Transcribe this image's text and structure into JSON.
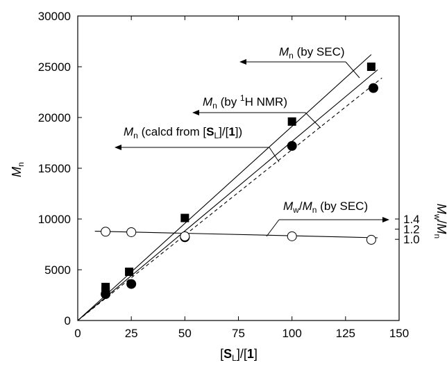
{
  "chart_data": {
    "type": "scatter",
    "xlabel": "[SL]/[1]",
    "ylabel": "Mn",
    "right_ylabel": "Mw/Mn",
    "xlim": [
      0,
      150
    ],
    "ylim": [
      0,
      30000
    ],
    "x_ticks": [
      0,
      25,
      50,
      75,
      100,
      125,
      150
    ],
    "y_ticks": [
      0,
      5000,
      10000,
      15000,
      20000,
      25000,
      30000
    ],
    "right_axis": {
      "ticks": [
        1.0,
        1.2,
        1.4
      ],
      "tick_labels": [
        "1.0",
        "1.2",
        "1.4"
      ],
      "value_1_0_at_left": 8000,
      "left_units_per_0_1": 500
    },
    "grid": false,
    "series": [
      {
        "name": "Mn (by SEC)",
        "marker": "filled-square",
        "x": [
          13,
          13,
          24,
          50,
          100,
          137
        ],
        "y": [
          3300,
          2900,
          4800,
          10100,
          19600,
          25000
        ],
        "fit_line": {
          "x": [
            0,
            137
          ],
          "y": [
            0,
            26200
          ]
        }
      },
      {
        "name": "Mn (by 1H NMR)",
        "marker": "filled-circle",
        "x": [
          13,
          25,
          50,
          100,
          138
        ],
        "y": [
          2600,
          3600,
          8200,
          17200,
          22900
        ],
        "fit_line": {
          "x": [
            0,
            140
          ],
          "y": [
            0,
            24700
          ]
        }
      },
      {
        "name": "Mn (calcd from [SL]/[1])",
        "marker": "none",
        "line_style": "dashed",
        "fit_line": {
          "x": [
            0,
            142
          ],
          "y": [
            0,
            23900
          ]
        }
      },
      {
        "name": "Mw/Mn (by SEC)",
        "marker": "open-circle",
        "axis": "right",
        "x": [
          13,
          25,
          50,
          100,
          137
        ],
        "y": [
          1.15,
          1.14,
          1.06,
          1.06,
          0.99
        ],
        "fit_line": {
          "x": [
            8,
            140
          ],
          "y": [
            1.16,
            1.03
          ]
        }
      }
    ],
    "annotations": [
      {
        "id": "sec",
        "pre": "M",
        "sub": "n",
        "post": " (by SEC)",
        "arrow": "left"
      },
      {
        "id": "nmr",
        "pre": "M",
        "sub": "n",
        "post": " (by ",
        "sup": "1",
        "post2": "H NMR)",
        "arrow": "left"
      },
      {
        "id": "calcd",
        "pre": "M",
        "sub": "n",
        "post": " (calcd from [",
        "bold1": "S",
        "sub2": "L",
        "post2": "]/[",
        "bold2": "1",
        "post3": "])",
        "arrow": "left"
      },
      {
        "id": "pdi",
        "pre": "M",
        "sub": "w",
        "post": "/",
        "pre2": "M",
        "sub2": "n",
        "post2": " (by SEC)",
        "arrow": "right"
      }
    ],
    "axis_text": {
      "y_main": "M",
      "y_sub": "n",
      "x_open": "[",
      "x_bold": "S",
      "x_sub": "L",
      "x_mid": "]/[",
      "x_bold2": "1",
      "x_close": "]",
      "r_main": "M",
      "r_sub": "w",
      "r_slash": "/",
      "r_main2": "M",
      "r_sub2": "n"
    }
  }
}
